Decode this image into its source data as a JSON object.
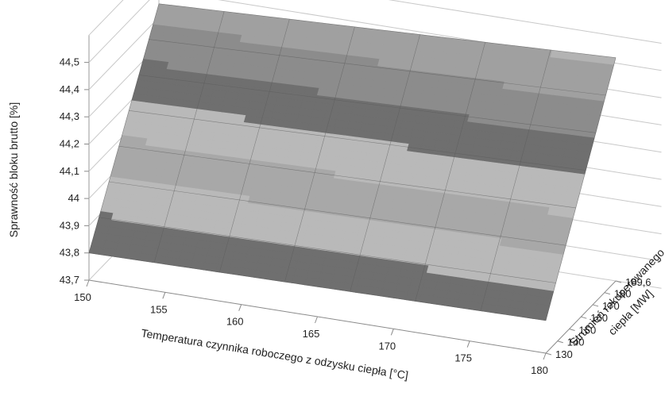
{
  "chart_data": {
    "type": "surface",
    "title": "",
    "z_axis": {
      "label": "Sprawność bloku brutto [%]",
      "ticks": [
        "43,7",
        "43,8",
        "43,9",
        "44",
        "44,1",
        "44,2",
        "44,3",
        "44,4",
        "44,5"
      ],
      "range": [
        43.7,
        44.5
      ]
    },
    "x_axis": {
      "label": "Temperatura czynnika roboczego z odzysku ciepła [°C]",
      "ticks": [
        "150",
        "155",
        "160",
        "165",
        "170",
        "175",
        "180"
      ],
      "range": [
        150,
        180
      ]
    },
    "y_axis": {
      "label_line1": "Strumień rekuperowanego",
      "label_line2": "ciepła [MW]",
      "ticks": [
        "130",
        "140",
        "150",
        "160",
        "170",
        "180",
        "189,6"
      ],
      "range": [
        130,
        189.6
      ]
    },
    "surface_corners": [
      {
        "temperature": 150,
        "heat_flow": 130,
        "efficiency": 43.8
      },
      {
        "temperature": 180,
        "heat_flow": 130,
        "efficiency": 43.82
      },
      {
        "temperature": 150,
        "heat_flow": 189.6,
        "efficiency": 44.45
      },
      {
        "temperature": 180,
        "heat_flow": 189.6,
        "efficiency": 44.52
      }
    ],
    "color_bands": [
      {
        "from": 43.7,
        "to": 43.9,
        "color": "#6f6f6f"
      },
      {
        "from": 43.9,
        "to": 44.0,
        "color": "#b9b9b9"
      },
      {
        "from": 44.0,
        "to": 44.1,
        "color": "#a8a8a8"
      },
      {
        "from": 44.1,
        "to": 44.2,
        "color": "#b9b9b9"
      },
      {
        "from": 44.2,
        "to": 44.3,
        "color": "#6f6f6f"
      },
      {
        "from": 44.3,
        "to": 44.4,
        "color": "#8c8c8c"
      },
      {
        "from": 44.4,
        "to": 44.5,
        "color": "#a0a0a0"
      },
      {
        "from": 44.5,
        "to": 44.6,
        "color": "#b3b3b3"
      }
    ]
  }
}
